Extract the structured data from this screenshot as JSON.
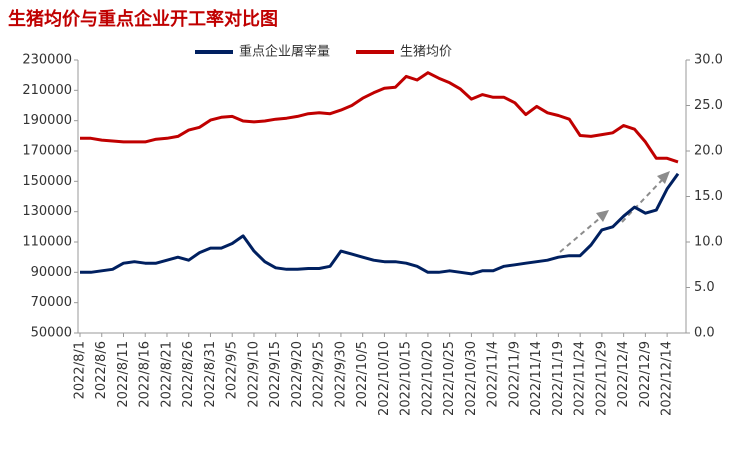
{
  "chart_data": {
    "type": "line",
    "title": "生猪均价与重点企业开工率对比图",
    "categories": [
      "2022/8/1",
      null,
      "2022/8/6",
      null,
      "2022/8/11",
      null,
      "2022/8/16",
      null,
      "2022/8/21",
      null,
      "2022/8/26",
      null,
      "2022/8/31",
      null,
      "2022/9/5",
      null,
      "2022/9/10",
      null,
      "2022/9/15",
      null,
      "2022/9/20",
      null,
      "2022/9/25",
      null,
      "2022/9/30",
      null,
      "2022/10/5",
      null,
      "2022/10/10",
      null,
      "2022/10/15",
      null,
      "2022/10/20",
      null,
      "2022/10/25",
      null,
      "2022/10/30",
      null,
      "2022/11/4",
      null,
      "2022/11/9",
      null,
      "2022/11/14",
      null,
      "2022/11/19",
      null,
      "2022/11/24",
      null,
      "2022/11/29",
      null,
      "2022/12/4",
      null,
      "2022/12/9",
      null,
      "2022/12/14",
      null
    ],
    "series": [
      {
        "name": "重点企业屠宰量",
        "color": "#002060",
        "axis": "y",
        "values": [
          90000,
          90000,
          91000,
          92000,
          96000,
          97000,
          96000,
          96000,
          98000,
          100000,
          98000,
          103000,
          106000,
          106000,
          109000,
          114000,
          104000,
          97000,
          93000,
          92000,
          92000,
          92500,
          92500,
          94000,
          104000,
          102000,
          100000,
          98000,
          97000,
          97000,
          96000,
          94000,
          90000,
          90000,
          91000,
          90000,
          89000,
          91000,
          91000,
          94000,
          95000,
          96000,
          97000,
          98000,
          100000,
          101000,
          101000,
          108000,
          118000,
          120000,
          127000,
          133000,
          129000,
          131000,
          145000,
          155000
        ]
      },
      {
        "name": "生猪均价",
        "color": "#c00000",
        "axis": "y2",
        "values": [
          21.4,
          21.4,
          21.2,
          21.1,
          21.0,
          21.0,
          21.0,
          21.3,
          21.4,
          21.6,
          22.3,
          22.6,
          23.4,
          23.7,
          23.8,
          23.3,
          23.2,
          23.3,
          23.5,
          23.6,
          23.8,
          24.1,
          24.2,
          24.1,
          24.5,
          25.0,
          25.8,
          26.4,
          26.9,
          27.0,
          28.2,
          27.8,
          28.6,
          28.0,
          27.5,
          26.8,
          25.7,
          26.2,
          25.9,
          25.9,
          25.3,
          24.0,
          24.9,
          24.2,
          23.9,
          23.5,
          21.7,
          21.6,
          21.8,
          22.0,
          22.8,
          22.4,
          21.0,
          19.2,
          19.2,
          18.8
        ]
      }
    ],
    "ylim": [
      50000,
      230000
    ],
    "yticks": [
      50000,
      70000,
      90000,
      110000,
      130000,
      150000,
      170000,
      190000,
      210000,
      230000
    ],
    "y2lim": [
      0,
      30
    ],
    "y2ticks": [
      {
        "value": 0,
        "label": "0.0"
      },
      {
        "value": 5,
        "label": "5.0"
      },
      {
        "value": 10,
        "label": "10.0"
      },
      {
        "value": 15,
        "label": "15.0"
      },
      {
        "value": 20,
        "label": "20.0"
      },
      {
        "value": 25,
        "label": "25.0"
      },
      {
        "value": 30,
        "label": "30.0"
      }
    ],
    "legend": "top"
  }
}
